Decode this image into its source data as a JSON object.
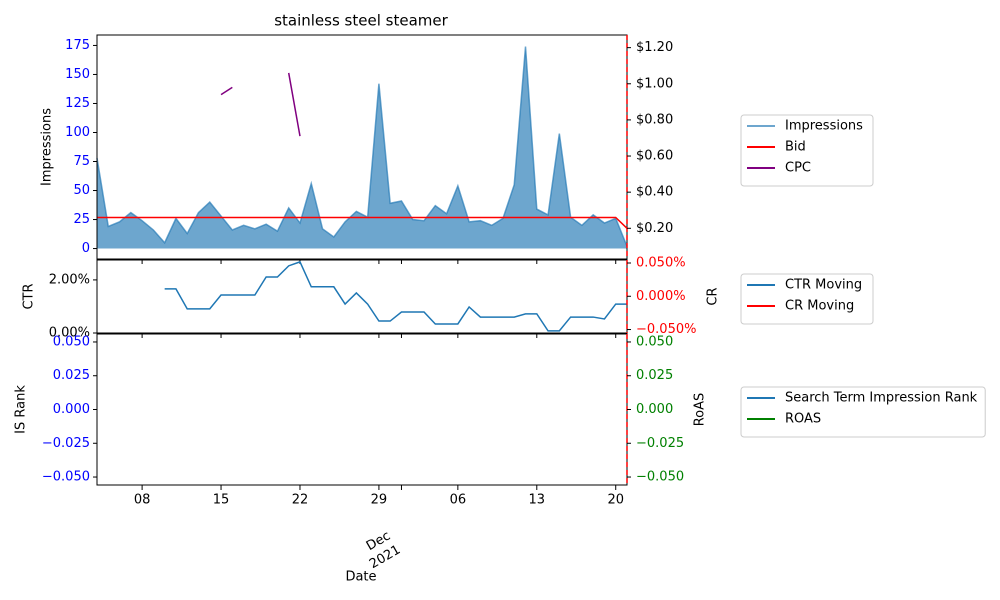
{
  "chart_data": [
    {
      "type": "line",
      "title": "stainless steel steamer",
      "ylabel": "Impressions",
      "y2label": "",
      "x": [
        "2021-11-04",
        "2021-11-05",
        "2021-11-06",
        "2021-11-07",
        "2021-11-08",
        "2021-11-09",
        "2021-11-10",
        "2021-11-11",
        "2021-11-12",
        "2021-11-13",
        "2021-11-14",
        "2021-11-15",
        "2021-11-16",
        "2021-11-17",
        "2021-11-18",
        "2021-11-19",
        "2021-11-20",
        "2021-11-21",
        "2021-11-22",
        "2021-11-23",
        "2021-11-24",
        "2021-11-25",
        "2021-11-26",
        "2021-11-27",
        "2021-11-28",
        "2021-11-29",
        "2021-11-30",
        "2021-12-01",
        "2021-12-02",
        "2021-12-03",
        "2021-12-04",
        "2021-12-05",
        "2021-12-06",
        "2021-12-07",
        "2021-12-08",
        "2021-12-09",
        "2021-12-10",
        "2021-12-11",
        "2021-12-12",
        "2021-12-13",
        "2021-12-14",
        "2021-12-15",
        "2021-12-16",
        "2021-12-17",
        "2021-12-18",
        "2021-12-19",
        "2021-12-20",
        "2021-12-21"
      ],
      "xlim": [
        "2021-11-04",
        "2021-12-21"
      ],
      "xticks": [
        "2021-11-08",
        "2021-11-15",
        "2021-11-22",
        "2021-11-29",
        "2021-12-01",
        "2021-12-06",
        "2021-12-13",
        "2021-12-20"
      ],
      "ylim": [
        -9,
        184
      ],
      "yticks": [
        0,
        25,
        50,
        75,
        100,
        125,
        150,
        175
      ],
      "ytick_color": "#0000ff",
      "y2lim": [
        0.03,
        1.27
      ],
      "y2ticks": [
        {
          "value": 0.2,
          "label": "$0.20"
        },
        {
          "value": 0.4,
          "label": "$0.40"
        },
        {
          "value": 0.6,
          "label": "$0.60"
        },
        {
          "value": 0.8,
          "label": "$0.80"
        },
        {
          "value": 1.0,
          "label": "$1.00"
        },
        {
          "value": 1.2,
          "label": "$1.20"
        }
      ],
      "y2tick_color": "#000000",
      "legend": "right",
      "series": [
        {
          "name": "Impressions",
          "color": "#1f77b4",
          "style": "area",
          "values": [
            78,
            19,
            23,
            31,
            24,
            16,
            5,
            26,
            13,
            31,
            40,
            28,
            16,
            20,
            17,
            21,
            15,
            35,
            22,
            56,
            17,
            10,
            23,
            32,
            27,
            142,
            39,
            41,
            25,
            24,
            37,
            30,
            54,
            23,
            24,
            20,
            26,
            55,
            174,
            34,
            29,
            99,
            27,
            20,
            29,
            22,
            26,
            2
          ]
        },
        {
          "name": "Bid",
          "color": "#ff0000",
          "style": "line",
          "axis": "y2",
          "values": [
            0.26,
            0.26,
            0.26,
            0.26,
            0.26,
            0.26,
            0.26,
            0.26,
            0.26,
            0.26,
            0.26,
            0.26,
            0.26,
            0.26,
            0.26,
            0.26,
            0.26,
            0.26,
            0.26,
            0.26,
            0.26,
            0.26,
            0.26,
            0.26,
            0.26,
            0.26,
            0.26,
            0.26,
            0.26,
            0.26,
            0.26,
            0.26,
            0.26,
            0.26,
            0.26,
            0.26,
            0.26,
            0.26,
            0.26,
            0.26,
            0.26,
            0.26,
            0.26,
            0.26,
            0.26,
            0.26,
            0.26,
            0.2
          ]
        },
        {
          "name": "CPC",
          "color": "#800080",
          "style": "line",
          "axis": "y2",
          "values": [
            null,
            null,
            null,
            null,
            null,
            null,
            null,
            null,
            null,
            null,
            null,
            0.94,
            0.98,
            null,
            null,
            null,
            null,
            1.06,
            0.71,
            null,
            null,
            null,
            null,
            null,
            null,
            null,
            null,
            null,
            null,
            null,
            null,
            null,
            null,
            null,
            null,
            null,
            null,
            null,
            null,
            null,
            null,
            null,
            null,
            null,
            null,
            null,
            null,
            null
          ]
        }
      ]
    },
    {
      "type": "line",
      "ylabel": "CTR",
      "y2label": "CR",
      "x": [
        "2021-11-04",
        "2021-11-05",
        "2021-11-06",
        "2021-11-07",
        "2021-11-08",
        "2021-11-09",
        "2021-11-10",
        "2021-11-11",
        "2021-11-12",
        "2021-11-13",
        "2021-11-14",
        "2021-11-15",
        "2021-11-16",
        "2021-11-17",
        "2021-11-18",
        "2021-11-19",
        "2021-11-20",
        "2021-11-21",
        "2021-11-22",
        "2021-11-23",
        "2021-11-24",
        "2021-11-25",
        "2021-11-26",
        "2021-11-27",
        "2021-11-28",
        "2021-11-29",
        "2021-11-30",
        "2021-12-01",
        "2021-12-02",
        "2021-12-03",
        "2021-12-04",
        "2021-12-05",
        "2021-12-06",
        "2021-12-07",
        "2021-12-08",
        "2021-12-09",
        "2021-12-10",
        "2021-12-11",
        "2021-12-12",
        "2021-12-13",
        "2021-12-14",
        "2021-12-15",
        "2021-12-16",
        "2021-12-17",
        "2021-12-18",
        "2021-12-19",
        "2021-12-20",
        "2021-12-21"
      ],
      "xlim": [
        "2021-11-04",
        "2021-12-21"
      ],
      "xticks": [
        "2021-11-08",
        "2021-11-15",
        "2021-11-22",
        "2021-11-29",
        "2021-12-01",
        "2021-12-06",
        "2021-12-13",
        "2021-12-20"
      ],
      "ylim": [
        0,
        2.75
      ],
      "yticks": [
        {
          "value": 0,
          "label": "0.00%"
        },
        {
          "value": 2,
          "label": "2.00%"
        }
      ],
      "ytick_color": "#000000",
      "y2lim": [
        -0.0552,
        0.0545
      ],
      "y2ticks": [
        {
          "value": -0.05,
          "label": "−0.050%"
        },
        {
          "value": 0,
          "label": "0.000%"
        },
        {
          "value": 0.05,
          "label": "0.050%"
        }
      ],
      "y2tick_color": "#ff0000",
      "legend": "right",
      "series": [
        {
          "name": "CTR Moving",
          "color": "#1f77b4",
          "style": "line",
          "values": [
            null,
            null,
            null,
            null,
            null,
            null,
            1.66,
            1.66,
            0.91,
            0.91,
            0.91,
            1.43,
            1.43,
            1.43,
            1.43,
            2.11,
            2.11,
            2.53,
            2.68,
            1.74,
            1.74,
            1.74,
            1.09,
            1.51,
            1.09,
            0.45,
            0.45,
            0.79,
            0.79,
            0.79,
            0.34,
            0.34,
            0.34,
            0.98,
            0.6,
            0.6,
            0.6,
            0.6,
            0.72,
            0.72,
            0.08,
            0.08,
            0.6,
            0.6,
            0.6,
            0.53,
            1.09,
            1.09
          ]
        },
        {
          "name": "CR Moving",
          "color": "#ff0000",
          "style": "line",
          "axis": "y2",
          "values": [
            null,
            null,
            null,
            null,
            null,
            null,
            null,
            null,
            null,
            null,
            null,
            null,
            null,
            null,
            null,
            null,
            null,
            null,
            null,
            null,
            null,
            null,
            null,
            null,
            null,
            null,
            null,
            null,
            null,
            null,
            null,
            null,
            null,
            null,
            null,
            null,
            null,
            null,
            null,
            null,
            null,
            null,
            null,
            null,
            null,
            null,
            null,
            null
          ]
        }
      ]
    },
    {
      "type": "line",
      "ylabel": "IS Rank",
      "y2label": "RoAS",
      "xlabel": "Date",
      "x": [
        "2021-11-04",
        "2021-11-05",
        "2021-11-06",
        "2021-11-07",
        "2021-11-08",
        "2021-11-09",
        "2021-11-10",
        "2021-11-11",
        "2021-11-12",
        "2021-11-13",
        "2021-11-14",
        "2021-11-15",
        "2021-11-16",
        "2021-11-17",
        "2021-11-18",
        "2021-11-19",
        "2021-11-20",
        "2021-11-21",
        "2021-11-22",
        "2021-11-23",
        "2021-11-24",
        "2021-11-25",
        "2021-11-26",
        "2021-11-27",
        "2021-11-28",
        "2021-11-29",
        "2021-11-30",
        "2021-12-01",
        "2021-12-02",
        "2021-12-03",
        "2021-12-04",
        "2021-12-05",
        "2021-12-06",
        "2021-12-07",
        "2021-12-08",
        "2021-12-09",
        "2021-12-10",
        "2021-12-11",
        "2021-12-12",
        "2021-12-13",
        "2021-12-14",
        "2021-12-15",
        "2021-12-16",
        "2021-12-17",
        "2021-12-18",
        "2021-12-19",
        "2021-12-20",
        "2021-12-21"
      ],
      "xlim": [
        "2021-11-04",
        "2021-12-21"
      ],
      "xticks": [
        {
          "value": "2021-11-08",
          "label": "08"
        },
        {
          "value": "2021-11-15",
          "label": "15"
        },
        {
          "value": "2021-11-22",
          "label": "22"
        },
        {
          "value": "2021-11-29",
          "label": "29"
        },
        {
          "value": "2021-12-01",
          "label": "Dec",
          "sublabel": "2021"
        },
        {
          "value": "2021-12-06",
          "label": "06"
        },
        {
          "value": "2021-12-13",
          "label": "13"
        },
        {
          "value": "2021-12-20",
          "label": "20"
        }
      ],
      "ylim": [
        -0.0559,
        0.0559
      ],
      "yticks": [
        {
          "value": -0.05,
          "label": "−0.050"
        },
        {
          "value": -0.025,
          "label": "−0.025"
        },
        {
          "value": 0,
          "label": "0.000"
        },
        {
          "value": 0.025,
          "label": "0.025"
        },
        {
          "value": 0.05,
          "label": "0.050"
        }
      ],
      "ytick_color": "#0000ff",
      "y2lim": [
        -0.0559,
        0.0559
      ],
      "y2ticks": [
        {
          "value": -0.05,
          "label": "−0.050"
        },
        {
          "value": -0.025,
          "label": "−0.025"
        },
        {
          "value": 0,
          "label": "0.000"
        },
        {
          "value": 0.025,
          "label": "0.025"
        },
        {
          "value": 0.05,
          "label": "0.050"
        }
      ],
      "y2tick_color": "#008000",
      "legend": "right",
      "series": [
        {
          "name": "Search Term Impression Rank",
          "color": "#1f77b4",
          "style": "line",
          "values": [
            null,
            null,
            null,
            null,
            null,
            null,
            null,
            null,
            null,
            null,
            null,
            null,
            null,
            null,
            null,
            null,
            null,
            null,
            null,
            null,
            null,
            null,
            null,
            null,
            null,
            null,
            null,
            null,
            null,
            null,
            null,
            null,
            null,
            null,
            null,
            null,
            null,
            null,
            null,
            null,
            null,
            null,
            null,
            null,
            null,
            null,
            null,
            null
          ]
        },
        {
          "name": "ROAS",
          "color": "#008000",
          "style": "line",
          "axis": "y2",
          "values": [
            null,
            null,
            null,
            null,
            null,
            null,
            null,
            null,
            null,
            null,
            null,
            null,
            null,
            null,
            null,
            null,
            null,
            null,
            null,
            null,
            null,
            null,
            null,
            null,
            null,
            null,
            null,
            null,
            null,
            null,
            null,
            null,
            null,
            null,
            null,
            null,
            null,
            null,
            null,
            null,
            null,
            null,
            null,
            null,
            null,
            null,
            null,
            null
          ]
        }
      ]
    }
  ]
}
